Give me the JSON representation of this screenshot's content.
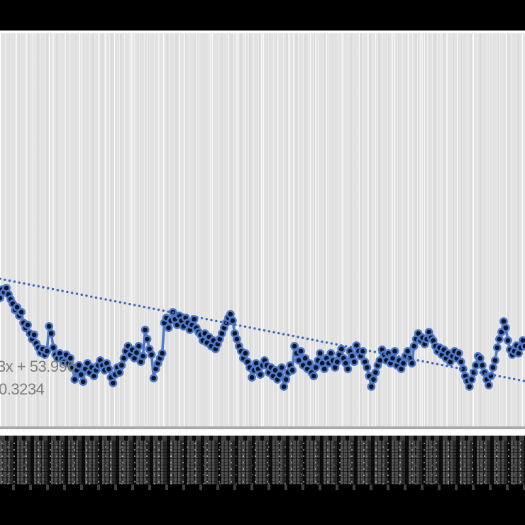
{
  "chart_data": {
    "type": "scatter",
    "title": "",
    "legend": {
      "visible": false
    },
    "y_axis": {
      "visible": false
    },
    "x_axis": {
      "count": 247,
      "tick_labels_legible": false,
      "tick_label_style": "rotated, densely overlapping (renders as dark band)"
    },
    "series": [
      {
        "name": "observations",
        "marker": "filled-circle-with-ring",
        "connected": true,
        "values": [
          52.0,
          52.89,
          52.59,
          53.04,
          52.37,
          51.86,
          51.41,
          50.75,
          51.04,
          50.16,
          50.53,
          49.42,
          48.9,
          49.2,
          48.31,
          47.72,
          48.17,
          47.28,
          46.84,
          46.32,
          46.69,
          46.1,
          46.47,
          49.05,
          48.31,
          46.84,
          46.1,
          45.73,
          46.25,
          45.66,
          45.36,
          46.1,
          45.21,
          45.73,
          44.77,
          43.52,
          44.48,
          44.99,
          44.03,
          43.29,
          44.62,
          45.21,
          44.25,
          44.77,
          43.88,
          44.48,
          44.99,
          45.51,
          44.99,
          44.48,
          45.21,
          44.62,
          43.74,
          43.15,
          44.03,
          44.77,
          44.25,
          44.99,
          45.73,
          46.47,
          46.99,
          46.1,
          46.62,
          45.73,
          46.32,
          46.99,
          45.36,
          45.95,
          48.68,
          47.72,
          46.69,
          46.1,
          43.66,
          44.62,
          45.21,
          45.73,
          46.25,
          49.42,
          49.94,
          48.9,
          49.64,
          50.53,
          49.79,
          49.2,
          50.16,
          49.64,
          49.05,
          49.94,
          49.42,
          48.68,
          49.2,
          49.79,
          48.9,
          48.46,
          48.17,
          47.58,
          48.31,
          47.35,
          47.94,
          46.99,
          47.58,
          46.69,
          47.21,
          47.72,
          48.31,
          48.9,
          49.42,
          49.94,
          50.31,
          49.64,
          48.31,
          47.72,
          46.99,
          46.47,
          45.73,
          46.25,
          45.36,
          44.77,
          43.74,
          44.48,
          45.21,
          44.62,
          44.03,
          44.99,
          45.51,
          44.99,
          44.25,
          44.77,
          43.88,
          44.48,
          43.52,
          44.03,
          44.77,
          42.78,
          43.52,
          44.25,
          44.99,
          44.48,
          46.99,
          46.25,
          45.51,
          46.47,
          44.99,
          45.73,
          44.62,
          45.21,
          44.25,
          43.88,
          44.77,
          45.51,
          46.25,
          45.21,
          44.62,
          45.73,
          45.21,
          46.25,
          45.51,
          44.77,
          45.36,
          46.1,
          46.69,
          45.73,
          45.21,
          44.62,
          46.47,
          45.95,
          45.36,
          47.06,
          46.47,
          45.95,
          46.47,
          45.36,
          44.77,
          43.88,
          42.78,
          43.52,
          44.25,
          44.99,
          45.51,
          46.62,
          46.1,
          45.51,
          46.25,
          45.21,
          45.73,
          46.47,
          44.99,
          45.51,
          44.62,
          45.21,
          45.95,
          46.47,
          45.73,
          45.21,
          46.99,
          47.72,
          48.31,
          47.58,
          47.87,
          47.21,
          47.72,
          48.46,
          47.87,
          47.58,
          46.99,
          46.47,
          46.84,
          46.1,
          46.62,
          45.73,
          46.25,
          45.36,
          45.95,
          46.47,
          45.73,
          46.25,
          45.36,
          44.62,
          43.88,
          43.37,
          42.78,
          43.52,
          44.25,
          44.99,
          45.95,
          45.73,
          44.99,
          44.25,
          43.52,
          42.93,
          43.88,
          44.77,
          45.51,
          46.84,
          47.72,
          48.46,
          49.57,
          48.9,
          47.58,
          46.62,
          46.1,
          46.47,
          47.06,
          46.25,
          46.84,
          47.58,
          46.99
        ]
      }
    ],
    "trendline": {
      "style": "dotted",
      "slope": -0.0433,
      "intercept": 53.996,
      "r_squared": 0.3234
    },
    "annotation": {
      "equation_fragment": "3x + 53.996",
      "r2_fragment": "0.3234"
    },
    "colors": {
      "marker_fill": "#0c1322",
      "marker_ring": "#4f79c9",
      "line": "#4f79c9",
      "trend": "#3c67b8",
      "plot_background": "#e2e2e3",
      "annotation_text": "#7d7d7d",
      "letterbox": "#000000"
    }
  }
}
